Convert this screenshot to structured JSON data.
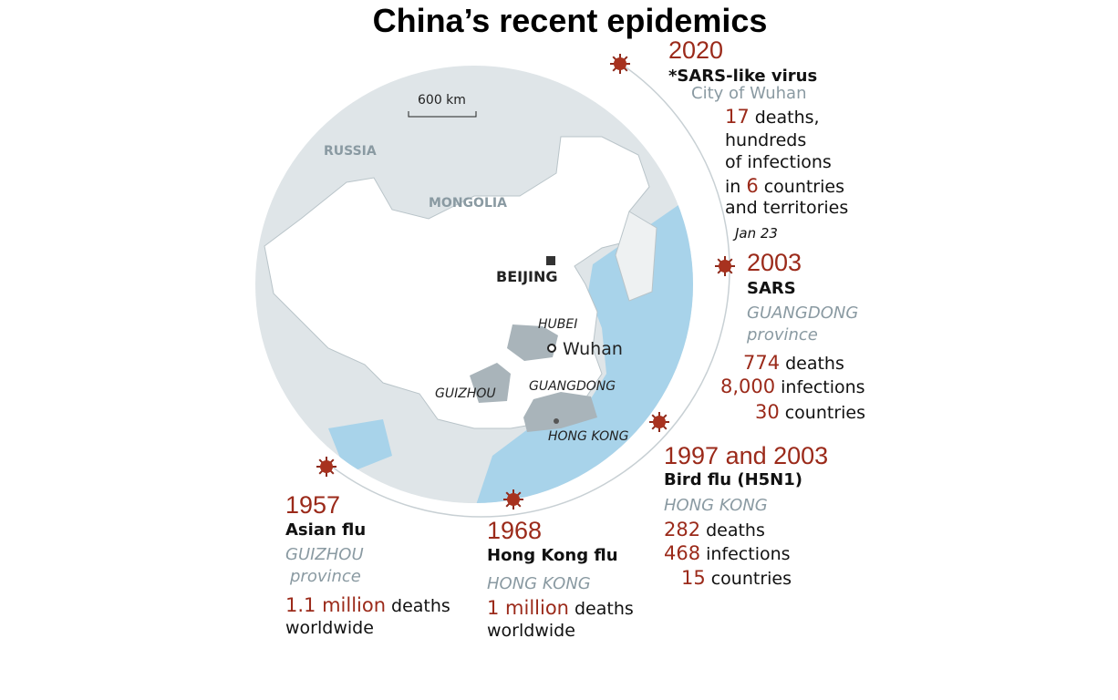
{
  "title": "China’s recent epidemics",
  "map": {
    "scale": "600 km",
    "countries": [
      "RUSSIA",
      "MONGOLIA"
    ],
    "capital": "BEIJING",
    "provinces": [
      "HUBEI",
      "GUIZHOU",
      "GUANGDONG"
    ],
    "city": "Wuhan",
    "territory": "HONG KONG"
  },
  "events": [
    {
      "year": "2020",
      "name": "*SARS-like virus",
      "place": [
        "City of Wuhan"
      ],
      "stats": [
        {
          "num": "17",
          "text": "deaths,"
        },
        {
          "text": "hundreds"
        },
        {
          "text": "of infections"
        },
        {
          "pre": "in",
          "num": "6",
          "text": "countries"
        },
        {
          "text": "and territories"
        }
      ],
      "date": "Jan 23"
    },
    {
      "year": "2003",
      "name": "SARS",
      "place": [
        "GUANGDONG",
        "province"
      ],
      "stats": [
        {
          "num": "774",
          "text": "deaths"
        },
        {
          "num": "8,000",
          "text": "infections"
        },
        {
          "num": "30",
          "text": "countries"
        }
      ]
    },
    {
      "year": "1997 and 2003",
      "name": "Bird flu (H5N1)",
      "place": [
        "HONG KONG"
      ],
      "stats": [
        {
          "num": "282",
          "text": "deaths"
        },
        {
          "num": "468",
          "text": "infections"
        },
        {
          "num": "15",
          "text": "countries"
        }
      ]
    },
    {
      "year": "1957",
      "name": "Asian flu",
      "place": [
        "GUIZHOU",
        "province"
      ],
      "stats": [
        {
          "num": "1.1 million",
          "text": "deaths"
        },
        {
          "text": "worldwide"
        }
      ]
    },
    {
      "year": "1968",
      "name": "Hong Kong flu",
      "place": [
        "HONG KONG"
      ],
      "stats": [
        {
          "num": "1 million",
          "text": "deaths"
        },
        {
          "text": "worldwide"
        }
      ]
    }
  ]
}
